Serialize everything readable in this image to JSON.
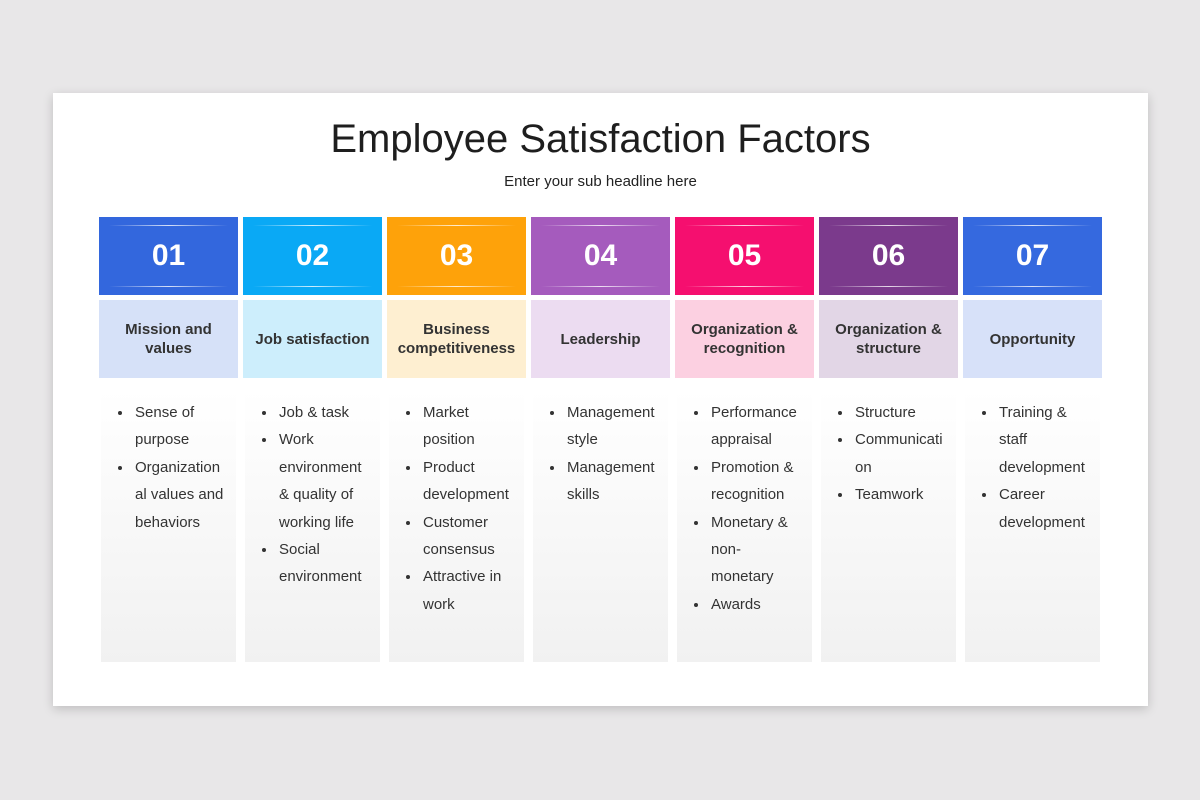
{
  "header": {
    "title": "Employee Satisfaction Factors",
    "subtitle": "Enter your sub headline here"
  },
  "columns": [
    {
      "number": "01",
      "label": "Mission and values",
      "items": [
        "Sense of purpose",
        "Organizational values and behaviors"
      ]
    },
    {
      "number": "02",
      "label": "Job satisfaction",
      "items": [
        "Job & task",
        "Work environment & quality of working life",
        "Social environment"
      ]
    },
    {
      "number": "03",
      "label": "Business competitiveness",
      "items": [
        "Market position",
        "Product development",
        "Customer consensus",
        "Attractive in work"
      ]
    },
    {
      "number": "04",
      "label": "Leadership",
      "items": [
        "Management style",
        "Management skills"
      ]
    },
    {
      "number": "05",
      "label": "Organization & recognition",
      "items": [
        "Performance appraisal",
        "Promotion & recognition",
        "Monetary & non-monetary",
        "Awards"
      ]
    },
    {
      "number": "06",
      "label": "Organization & structure",
      "items": [
        "Structure",
        "Communication",
        "Teamwork"
      ]
    },
    {
      "number": "07",
      "label": "Opportunity",
      "items": [
        "Training & staff development",
        "Career development"
      ]
    }
  ]
}
